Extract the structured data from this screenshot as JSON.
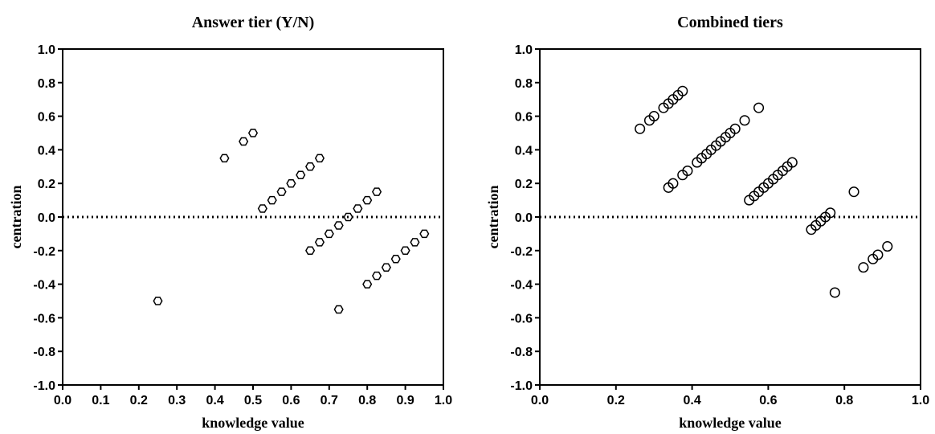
{
  "chart_data": [
    {
      "type": "scatter",
      "title": "Answer tier (Y/N)",
      "xlabel": "knowledge value",
      "ylabel": "centration",
      "xlim": [
        0.0,
        1.0
      ],
      "ylim": [
        -1.0,
        1.0
      ],
      "x_ticks": [
        0.0,
        0.1,
        0.2,
        0.3,
        0.4,
        0.5,
        0.6,
        0.7,
        0.8,
        0.9,
        1.0
      ],
      "x_tick_labels": [
        "0.0",
        "0.1",
        "0.2",
        "0.3",
        "0.4",
        "0.5",
        "0.6",
        "0.7",
        "0.8",
        "0.9",
        "1.0"
      ],
      "y_ticks": [
        -1.0,
        -0.8,
        -0.6,
        -0.4,
        -0.2,
        0.0,
        0.2,
        0.4,
        0.6,
        0.8,
        1.0
      ],
      "y_tick_labels": [
        "-1.0",
        "-0.8",
        "-0.6",
        "-0.4",
        "-0.2",
        "0.0",
        "0.2",
        "0.4",
        "0.6",
        "0.8",
        "1.0"
      ],
      "reference_line_y": 0.0,
      "marker": "hexagon",
      "series": [
        {
          "points": [
            [
              0.25,
              -0.5
            ],
            [
              0.425,
              0.35
            ],
            [
              0.475,
              0.45
            ],
            [
              0.5,
              0.5
            ],
            [
              0.525,
              0.05
            ],
            [
              0.55,
              0.1
            ],
            [
              0.575,
              0.15
            ],
            [
              0.6,
              0.2
            ],
            [
              0.625,
              0.25
            ],
            [
              0.65,
              0.3
            ],
            [
              0.675,
              0.35
            ],
            [
              0.65,
              -0.2
            ],
            [
              0.675,
              -0.15
            ],
            [
              0.7,
              -0.1
            ],
            [
              0.725,
              -0.05
            ],
            [
              0.75,
              0.0
            ],
            [
              0.775,
              0.05
            ],
            [
              0.8,
              0.1
            ],
            [
              0.825,
              0.15
            ],
            [
              0.725,
              -0.55
            ],
            [
              0.8,
              -0.4
            ],
            [
              0.825,
              -0.35
            ],
            [
              0.85,
              -0.3
            ],
            [
              0.875,
              -0.25
            ],
            [
              0.9,
              -0.2
            ],
            [
              0.925,
              -0.15
            ],
            [
              0.95,
              -0.1
            ]
          ]
        }
      ]
    },
    {
      "type": "scatter",
      "title": "Combined tiers",
      "xlabel": "knowledge value",
      "ylabel": "centration",
      "xlim": [
        0.0,
        1.0
      ],
      "ylim": [
        -1.0,
        1.0
      ],
      "x_ticks": [
        0.0,
        0.2,
        0.4,
        0.6,
        0.8,
        1.0
      ],
      "x_tick_labels": [
        "0.0",
        "0.2",
        "0.4",
        "0.6",
        "0.8",
        "1.0"
      ],
      "y_ticks": [
        -1.0,
        -0.8,
        -0.6,
        -0.4,
        -0.2,
        0.0,
        0.2,
        0.4,
        0.6,
        0.8,
        1.0
      ],
      "y_tick_labels": [
        "-1.0",
        "-0.8",
        "-0.6",
        "-0.4",
        "-0.2",
        "0.0",
        "0.2",
        "0.4",
        "0.6",
        "0.8",
        "1.0"
      ],
      "reference_line_y": 0.0,
      "marker": "circle",
      "series": [
        {
          "points": [
            [
              0.263,
              0.525
            ],
            [
              0.288,
              0.575
            ],
            [
              0.3,
              0.6
            ],
            [
              0.325,
              0.65
            ],
            [
              0.338,
              0.675
            ],
            [
              0.35,
              0.7
            ],
            [
              0.363,
              0.725
            ],
            [
              0.375,
              0.75
            ],
            [
              0.575,
              0.65
            ],
            [
              0.338,
              0.175
            ],
            [
              0.35,
              0.2
            ],
            [
              0.375,
              0.25
            ],
            [
              0.388,
              0.275
            ],
            [
              0.413,
              0.325
            ],
            [
              0.425,
              0.35
            ],
            [
              0.438,
              0.375
            ],
            [
              0.45,
              0.4
            ],
            [
              0.463,
              0.425
            ],
            [
              0.475,
              0.45
            ],
            [
              0.488,
              0.475
            ],
            [
              0.5,
              0.5
            ],
            [
              0.513,
              0.525
            ],
            [
              0.538,
              0.575
            ],
            [
              0.55,
              0.1
            ],
            [
              0.563,
              0.125
            ],
            [
              0.575,
              0.15
            ],
            [
              0.588,
              0.175
            ],
            [
              0.6,
              0.2
            ],
            [
              0.613,
              0.225
            ],
            [
              0.625,
              0.25
            ],
            [
              0.638,
              0.275
            ],
            [
              0.65,
              0.3
            ],
            [
              0.663,
              0.325
            ],
            [
              0.713,
              -0.075
            ],
            [
              0.725,
              -0.05
            ],
            [
              0.738,
              -0.025
            ],
            [
              0.75,
              0.0
            ],
            [
              0.763,
              0.025
            ],
            [
              0.825,
              0.15
            ],
            [
              0.775,
              -0.45
            ],
            [
              0.85,
              -0.3
            ],
            [
              0.875,
              -0.25
            ],
            [
              0.888,
              -0.225
            ],
            [
              0.913,
              -0.175
            ]
          ]
        }
      ]
    }
  ]
}
